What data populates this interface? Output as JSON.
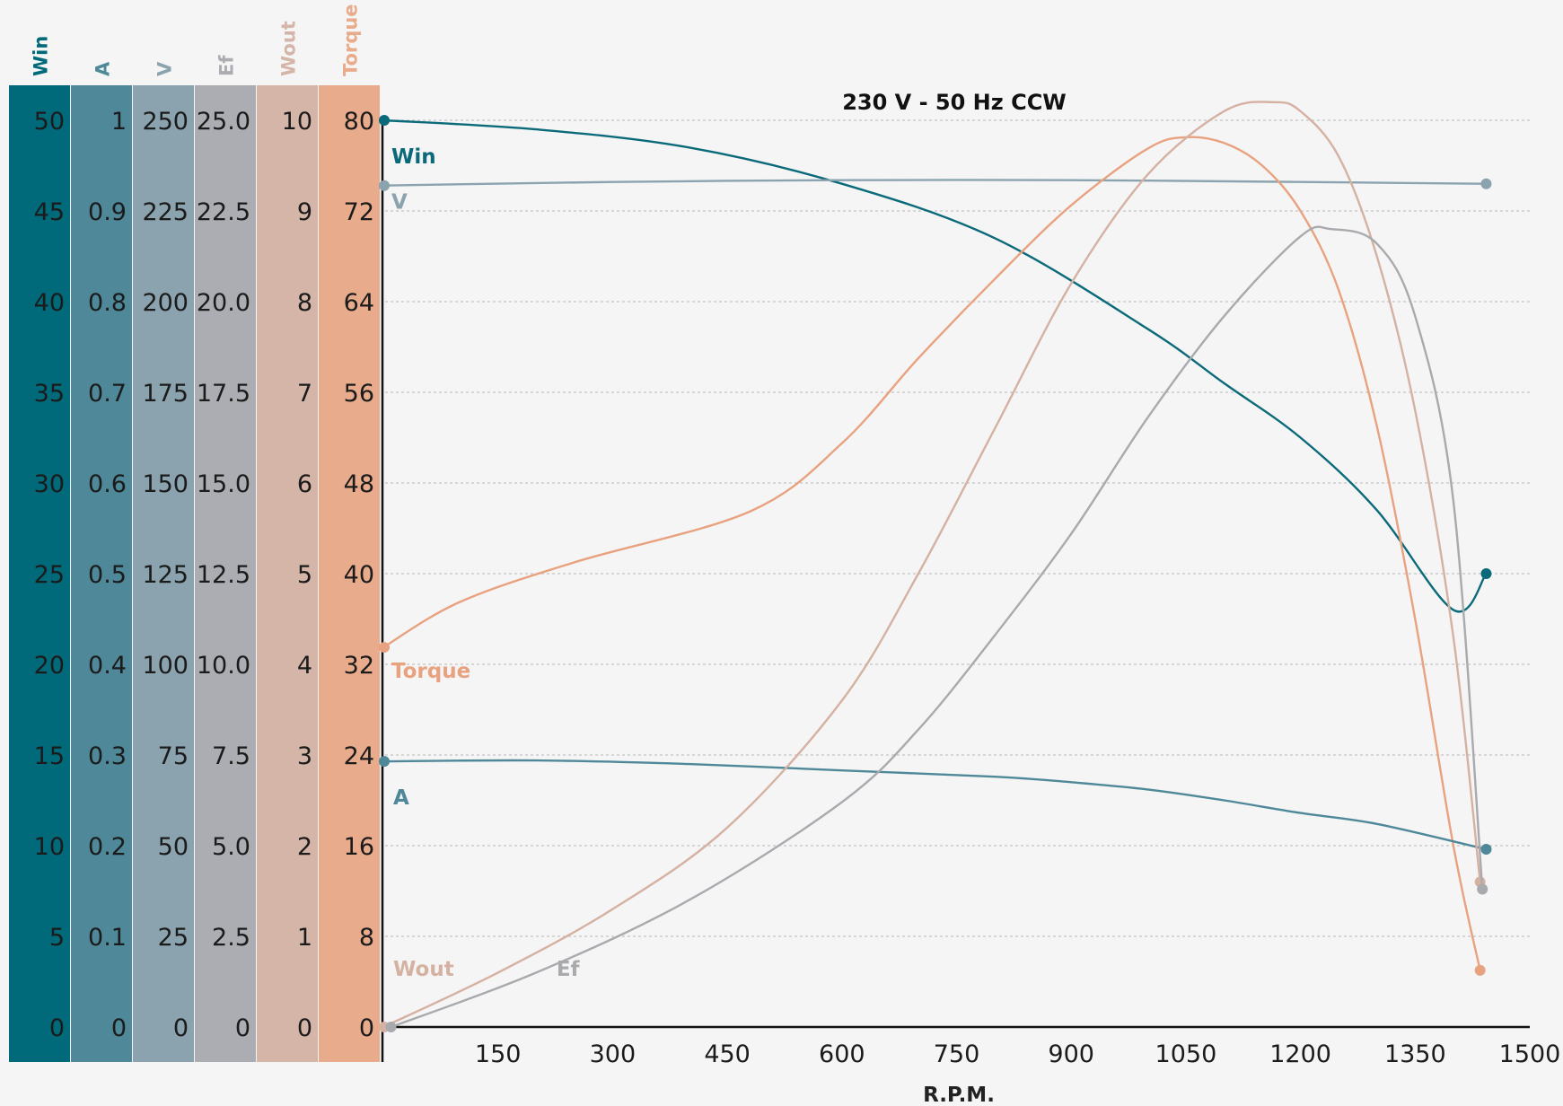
{
  "chart_data": {
    "type": "line",
    "title": "230 V - 50 Hz CCW",
    "xlabel": "R.P.M.",
    "xlim": [
      0,
      1500
    ],
    "x_ticks": [
      150,
      300,
      450,
      600,
      750,
      900,
      1050,
      1200,
      1350,
      1500
    ],
    "grid": true,
    "y_axes": [
      {
        "name": "Win",
        "color": "#00697a",
        "ticks": [
          "0",
          "5",
          "10",
          "15",
          "20",
          "25",
          "30",
          "35",
          "40",
          "45",
          "50"
        ],
        "range": [
          0,
          50
        ]
      },
      {
        "name": "A",
        "color": "#4e8899",
        "ticks": [
          "0",
          "0.1",
          "0.2",
          "0.3",
          "0.4",
          "0.5",
          "0.6",
          "0.7",
          "0.8",
          "0.9",
          "1"
        ],
        "range": [
          0,
          1
        ]
      },
      {
        "name": "V",
        "color": "#8aa3af",
        "ticks": [
          "0",
          "25",
          "50",
          "75",
          "100",
          "125",
          "150",
          "175",
          "200",
          "225",
          "250"
        ],
        "range": [
          0,
          250
        ]
      },
      {
        "name": "Ef",
        "color": "#abadb3",
        "ticks": [
          "0",
          "2.5",
          "5.0",
          "7.5",
          "10.0",
          "12.5",
          "15.0",
          "17.5",
          "20.0",
          "22.5",
          "25.0"
        ],
        "range": [
          0,
          25
        ]
      },
      {
        "name": "Wout",
        "color": "#d5b5a8",
        "ticks": [
          "0",
          "1",
          "2",
          "3",
          "4",
          "5",
          "6",
          "7",
          "8",
          "9",
          "10"
        ],
        "range": [
          0,
          10
        ]
      },
      {
        "name": "Torque",
        "color": "#e8ab8b",
        "ticks": [
          "0",
          "8",
          "16",
          "24",
          "32",
          "40",
          "48",
          "56",
          "64",
          "72",
          "80"
        ],
        "range": [
          0,
          80
        ]
      }
    ],
    "series": [
      {
        "name": "Win",
        "axis": 0,
        "color": "#0b6a7a",
        "x": [
          0,
          200,
          400,
          600,
          800,
          1000,
          1100,
          1200,
          1300,
          1400,
          1443
        ],
        "y": [
          50,
          49.5,
          48.5,
          46.5,
          43.5,
          38.5,
          35.5,
          32.5,
          28.5,
          23,
          25
        ]
      },
      {
        "name": "V",
        "axis": 2,
        "color": "#8aa3af",
        "x": [
          0,
          300,
          600,
          900,
          1200,
          1443
        ],
        "y": [
          232,
          233,
          233.5,
          233.5,
          233,
          232.5
        ]
      },
      {
        "name": "Torque",
        "axis": 5,
        "color": "#e8a27f",
        "x": [
          0,
          100,
          250,
          480,
          600,
          700,
          800,
          900,
          1000,
          1050,
          1100,
          1150,
          1200,
          1250,
          1300,
          1350,
          1400,
          1435
        ],
        "y": [
          33.5,
          37.5,
          41,
          45.5,
          51.5,
          59,
          66,
          72.5,
          77.5,
          78.5,
          78,
          76,
          72,
          65,
          53,
          36,
          16,
          5
        ]
      },
      {
        "name": "A",
        "axis": 1,
        "color": "#4e8899",
        "x": [
          0,
          200,
          400,
          600,
          800,
          900,
          1000,
          1100,
          1200,
          1300,
          1443
        ],
        "y": [
          0.293,
          0.294,
          0.29,
          0.283,
          0.276,
          0.27,
          0.262,
          0.25,
          0.236,
          0.224,
          0.196
        ]
      },
      {
        "name": "Wout",
        "axis": 4,
        "color": "#d5b1a2",
        "x": [
          0,
          150,
          300,
          450,
          600,
          700,
          800,
          900,
          1000,
          1100,
          1165,
          1200,
          1250,
          1300,
          1350,
          1400,
          1435
        ],
        "y": [
          0,
          0.6,
          1.3,
          2.2,
          3.6,
          5.0,
          6.6,
          8.2,
          9.4,
          10.1,
          10.2,
          10.1,
          9.6,
          8.5,
          6.8,
          4.3,
          1.6
        ]
      },
      {
        "name": "Ef",
        "axis": 3,
        "color": "#a8aaae",
        "x": [
          10,
          200,
          400,
          600,
          700,
          800,
          900,
          1000,
          1100,
          1200,
          1240,
          1300,
          1350,
          1400,
          1438
        ],
        "y": [
          0,
          1.5,
          3.5,
          6.2,
          8.2,
          10.8,
          13.6,
          16.8,
          19.6,
          21.8,
          22.0,
          21.6,
          19.6,
          14.5,
          3.8
        ]
      }
    ]
  }
}
